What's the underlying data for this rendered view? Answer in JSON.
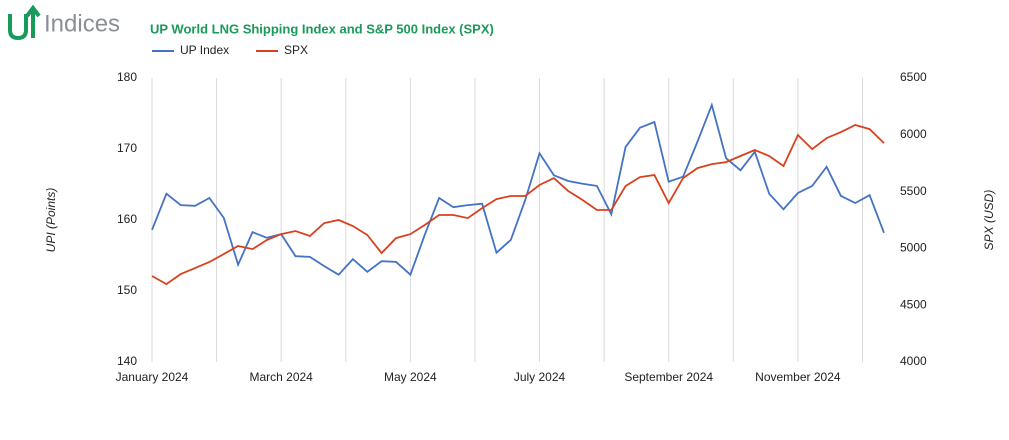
{
  "logo": "Indices",
  "chart_data": {
    "type": "line",
    "title": "UP World LNG Shipping Index and S&P 500 Index (SPX)",
    "categories": [
      "January 2024",
      null,
      null,
      null,
      null,
      null,
      null,
      null,
      null,
      "March 2024",
      null,
      null,
      null,
      null,
      null,
      null,
      null,
      null,
      "May 2024",
      null,
      null,
      null,
      null,
      null,
      null,
      null,
      null,
      "July 2024",
      null,
      null,
      null,
      null,
      null,
      null,
      null,
      null,
      "September 2024",
      null,
      null,
      null,
      null,
      null,
      null,
      null,
      null,
      "November 2024",
      null,
      null,
      null,
      null,
      null,
      null
    ],
    "series": [
      {
        "name": "UP Index",
        "color": "#4472c4",
        "values": [
          158.6,
          163.7,
          162.1,
          162.0,
          163.1,
          160.3,
          153.7,
          158.3,
          157.5,
          158.0,
          154.9,
          154.8,
          153.5,
          152.3,
          154.5,
          152.7,
          154.2,
          154.1,
          152.3,
          157.9,
          163.1,
          161.8,
          162.1,
          162.3,
          155.4,
          157.2,
          162.8,
          169.4,
          166.3,
          165.5,
          165.1,
          164.8,
          160.8,
          170.3,
          173.0,
          173.8,
          165.4,
          166.1,
          171.0,
          176.2,
          168.7,
          167.0,
          169.6,
          163.7,
          161.5,
          163.8,
          164.8,
          167.5,
          163.4,
          162.4,
          163.5,
          158.2
        ]
      },
      {
        "name": "SPX",
        "color": "#d9411e",
        "axis": "y2",
        "values": [
          4757,
          4686,
          4774,
          4827,
          4880,
          4950,
          5021,
          4994,
          5074,
          5126,
          5153,
          5109,
          5223,
          5250,
          5197,
          5118,
          4959,
          5091,
          5126,
          5206,
          5294,
          5294,
          5267,
          5355,
          5434,
          5461,
          5461,
          5558,
          5619,
          5505,
          5426,
          5338,
          5338,
          5549,
          5628,
          5646,
          5399,
          5619,
          5707,
          5742,
          5760,
          5813,
          5866,
          5813,
          5725,
          5998,
          5874,
          5971,
          6024,
          6086,
          6050,
          5927
        ]
      }
    ],
    "ylabel": "UPI (Points)",
    "y2label": "SPX (USD)",
    "ylim": [
      140,
      180
    ],
    "yticks": [
      140,
      150,
      160,
      170,
      180
    ],
    "y2lim": [
      4000,
      6500
    ],
    "y2ticks": [
      4000,
      4500,
      5000,
      5500,
      6000,
      6500
    ],
    "grid": true,
    "legend": "top-left"
  }
}
